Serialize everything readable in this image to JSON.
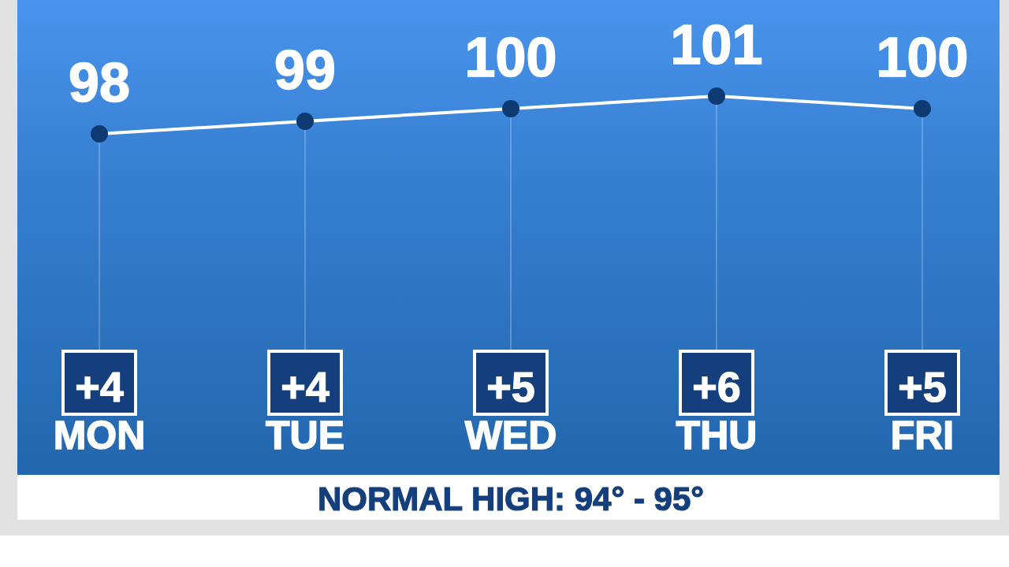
{
  "chart_data": {
    "type": "line",
    "categories": [
      "MON",
      "TUE",
      "WED",
      "THU",
      "FRI"
    ],
    "values": [
      98,
      99,
      100,
      101,
      100
    ],
    "color": "#ffffff",
    "marker": "circle",
    "data_labels": true,
    "grid": "x",
    "tick_labels": "x",
    "annotations": [
      "+4",
      "+4",
      "+5",
      "+6",
      "+5",
      "NORMAL HIGH: 94° - 95°"
    ]
  }
}
